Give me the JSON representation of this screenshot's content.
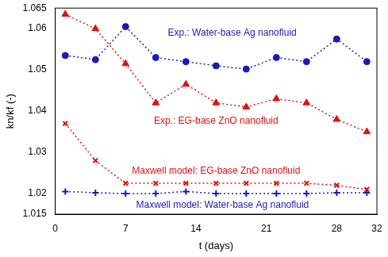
{
  "chart_data": {
    "type": "line",
    "x_label": "t (days)",
    "y_label": "kn/kf (-)",
    "xlim": [
      0,
      32
    ],
    "xticks": [
      0,
      7,
      14,
      21,
      28,
      32
    ],
    "ylim": [
      1.015,
      1.065
    ],
    "yticks": [
      1.015,
      1.02,
      1.03,
      1.04,
      1.05,
      1.06,
      1.065
    ],
    "grid": false,
    "line_style": "dotted",
    "series": [
      {
        "name": "Exp.: Water-base Ag nanofluid",
        "color": "#1a1ab8",
        "marker": "circle",
        "x": [
          1,
          4,
          7,
          10,
          13,
          16,
          19,
          22,
          25,
          28,
          31
        ],
        "values": [
          1.0535,
          1.0525,
          1.0605,
          1.053,
          1.052,
          1.051,
          1.0502,
          1.053,
          1.052,
          1.0575,
          1.052
        ]
      },
      {
        "name": "Exp.: EG-base ZnO nanofluid",
        "color": "#e01010",
        "marker": "triangle",
        "x": [
          1,
          4,
          7,
          10,
          13,
          16,
          19,
          22,
          25,
          28,
          31
        ],
        "values": [
          1.0635,
          1.06,
          1.0515,
          1.042,
          1.0465,
          1.042,
          1.041,
          1.043,
          1.042,
          1.038,
          1.035
        ]
      },
      {
        "name": "Maxwell model: EG-base ZnO nanofluid",
        "color": "#e01010",
        "marker": "x",
        "x": [
          1,
          4,
          7,
          10,
          13,
          16,
          19,
          22,
          25,
          28,
          31
        ],
        "values": [
          1.037,
          1.028,
          1.0225,
          1.0225,
          1.0225,
          1.0225,
          1.0225,
          1.0225,
          1.0225,
          1.022,
          1.021
        ]
      },
      {
        "name": "Maxwell model: Water-base Ag nanofluid",
        "color": "#1a1ab8",
        "marker": "+",
        "x": [
          1,
          4,
          7,
          10,
          13,
          16,
          19,
          22,
          25,
          28,
          31
        ],
        "values": [
          1.0205,
          1.0202,
          1.02,
          1.02,
          1.0205,
          1.02,
          1.02,
          1.02,
          1.02,
          1.0202,
          1.0202
        ]
      }
    ]
  }
}
